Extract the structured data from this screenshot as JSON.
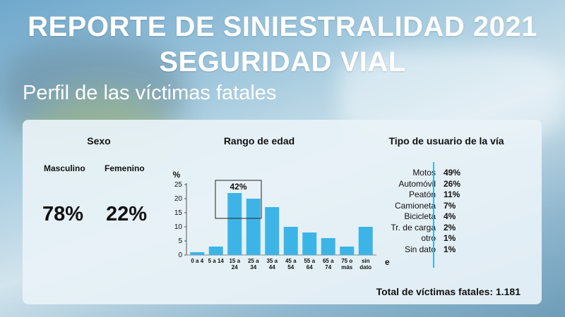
{
  "header": {
    "title_line1": "REPORTE DE SINIESTRALIDAD 2021",
    "title_line2": "SEGURIDAD VIAL",
    "subtitle": "Perfil de las víctimas fatales"
  },
  "sexo": {
    "title": "Sexo",
    "masculino_label": "Masculino",
    "femenino_label": "Femenino",
    "masculino_value": "78%",
    "femenino_value": "22%"
  },
  "age": {
    "title": "Rango de edad"
  },
  "tipo_usuario": {
    "title": "Tipo de usuario de la vía",
    "items": [
      {
        "label": "Motos",
        "value": "49%"
      },
      {
        "label": "Automóvil",
        "value": "26%"
      },
      {
        "label": "Peatón",
        "value": "11%"
      },
      {
        "label": "Camioneta",
        "value": "7%"
      },
      {
        "label": "Bicicleta",
        "value": "4%"
      },
      {
        "label": "Tr. de carga",
        "value": "2%"
      },
      {
        "label": "otro",
        "value": "1%"
      },
      {
        "label": "Sin dato",
        "value": "1%"
      }
    ]
  },
  "total": "Total de víctimas fatales: 1.181",
  "colors": {
    "bar": "#3cb4e6",
    "accent": "#3cb4e6",
    "text": "#111111",
    "title": "#ffffff"
  },
  "chart_data": {
    "type": "bar",
    "title": "Rango de edad",
    "ylabel": "%",
    "xlabel": "edad",
    "ylim": [
      0,
      25
    ],
    "yticks": [
      0,
      5,
      10,
      15,
      20,
      25
    ],
    "categories": [
      [
        "0 a 4"
      ],
      [
        "5 a 14"
      ],
      [
        "15 a",
        "24"
      ],
      [
        "25 a",
        "34"
      ],
      [
        "35 a",
        "44"
      ],
      [
        "45 a",
        "54"
      ],
      [
        "55 a",
        "64"
      ],
      [
        "65 a",
        "74"
      ],
      [
        "75 o",
        "más"
      ],
      [
        "sin",
        "dato"
      ]
    ],
    "values": [
      1,
      3,
      22,
      20,
      17,
      10,
      8,
      6,
      3,
      10
    ],
    "annotation": {
      "text": "42%",
      "categories": [
        "15 a 24",
        "25 a 34"
      ]
    },
    "grid": false
  }
}
